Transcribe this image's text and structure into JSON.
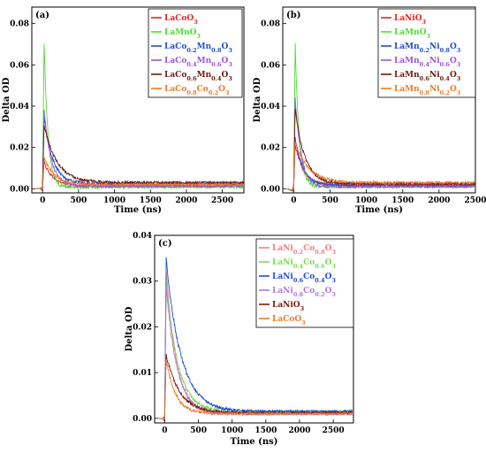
{
  "chart_data": [
    {
      "type": "line",
      "panel_label": "(a)",
      "xlabel": "Time (ns)",
      "ylabel": "Delta OD",
      "xlim": [
        -150,
        2800
      ],
      "ylim": [
        -0.002,
        0.088
      ],
      "xticks": [
        0,
        500,
        1000,
        1500,
        2000,
        2500
      ],
      "yticks": [
        0.0,
        0.02,
        0.04,
        0.06,
        0.08
      ],
      "ytick_labels": [
        "0.00",
        "0.02",
        "0.04",
        "0.06",
        "0.08"
      ],
      "legend_position": "top-right",
      "series": [
        {
          "name": "LaCoO3",
          "label_html": "LaCoO<sub>3</sub>",
          "color": "#e8211f",
          "peak": 0.013,
          "tau": 120,
          "tail": 0.0015
        },
        {
          "name": "LaMnO3",
          "label_html": "LaMnO<sub>3</sub>",
          "color": "#4fdc32",
          "peak": 0.072,
          "tau": 55,
          "tail": 0.0008
        },
        {
          "name": "LaCo0.2Mn0.8O3",
          "label_html": "LaCo<sub>0.2</sub>Mn<sub>0.8</sub>O<sub>3</sub>",
          "color": "#1f4fd1",
          "peak": 0.035,
          "tau": 120,
          "tail": 0.0025
        },
        {
          "name": "LaCo0.4Mn0.6O3",
          "label_html": "LaCo<sub>0.4</sub>Mn<sub>0.6</sub>O<sub>3</sub>",
          "color": "#9a56d8",
          "peak": 0.039,
          "tau": 95,
          "tail": 0.0012
        },
        {
          "name": "LaCo0.6Mn0.4O3",
          "label_html": "LaCo<sub>0.6</sub>Mn<sub>0.4</sub>O<sub>3</sub>",
          "color": "#6b1a12",
          "peak": 0.031,
          "tau": 180,
          "tail": 0.003
        },
        {
          "name": "LaCo0.8Co0.2O3",
          "label_html": "LaCo<sub>0.8</sub>Co<sub>0.2</sub>O<sub>3</sub>",
          "color": "#f07a2a",
          "peak": 0.015,
          "tau": 150,
          "tail": 0.002
        }
      ]
    },
    {
      "type": "line",
      "panel_label": "(b)",
      "xlabel": "Time (ns)",
      "ylabel": "Delta OD",
      "xlim": [
        -150,
        2500
      ],
      "ylim": [
        -0.002,
        0.088
      ],
      "xticks": [
        0,
        500,
        1000,
        1500,
        2000,
        2500
      ],
      "yticks": [
        0.0,
        0.02,
        0.04,
        0.06,
        0.08
      ],
      "ytick_labels": [
        "0.00",
        "0.02",
        "0.04",
        "0.06",
        "0.08"
      ],
      "legend_position": "top-right",
      "series": [
        {
          "name": "LaNiO3",
          "label_html": "LaNiO<sub>3</sub>",
          "color": "#e8211f",
          "peak": 0.022,
          "tau": 110,
          "tail": 0.002
        },
        {
          "name": "LaMnO3",
          "label_html": "LaMnO<sub>3</sub>",
          "color": "#4fdc32",
          "peak": 0.072,
          "tau": 55,
          "tail": 0.001
        },
        {
          "name": "LaMn0.2Ni0.8O3",
          "label_html": "LaMn<sub>0.2</sub>Ni<sub>0.8</sub>O<sub>3</sub>",
          "color": "#1f4fd1",
          "peak": 0.025,
          "tau": 110,
          "tail": 0.0015
        },
        {
          "name": "LaMn0.4Ni0.6O3",
          "label_html": "LaMn<sub>0.4</sub>Ni<sub>0.6</sub>O<sub>3</sub>",
          "color": "#9a56d8",
          "peak": 0.045,
          "tau": 80,
          "tail": 0.001
        },
        {
          "name": "LaMn0.6Ni0.4O3",
          "label_html": "LaMn<sub>0.6</sub>Ni<sub>0.4</sub>O<sub>3</sub>",
          "color": "#6b1a12",
          "peak": 0.039,
          "tau": 130,
          "tail": 0.0025
        },
        {
          "name": "LaMn0.8Ni0.2O3",
          "label_html": "LaMn<sub>0.8</sub>Ni<sub>0.2</sub>O<sub>3</sub>",
          "color": "#f07a2a",
          "peak": 0.023,
          "tau": 180,
          "tail": 0.003
        }
      ]
    },
    {
      "type": "line",
      "panel_label": "(c)",
      "xlabel": "Time (ns)",
      "ylabel": "Delta OD",
      "xlim": [
        -150,
        2800
      ],
      "ylim": [
        -0.001,
        0.04
      ],
      "xticks": [
        0,
        500,
        1000,
        1500,
        2000,
        2500
      ],
      "yticks": [
        0.0,
        0.01,
        0.02,
        0.03,
        0.04
      ],
      "ytick_labels": [
        "0.00",
        "0.01",
        "0.02",
        "0.03",
        "0.04"
      ],
      "legend_position": "top-right",
      "series": [
        {
          "name": "LaNi0.2Co0.8O3",
          "label_html": "LaNi<sub>0.2</sub>Co<sub>0.8</sub>O<sub>3</sub>",
          "color": "#f08080",
          "peak": 0.033,
          "tau": 150,
          "tail": 0.001
        },
        {
          "name": "LaNi0.4Co0.6O3",
          "label_html": "LaNi<sub>0.4</sub>Co<sub>0.6</sub>O<sub>3</sub>",
          "color": "#7ddc50",
          "peak": 0.031,
          "tau": 170,
          "tail": 0.0015
        },
        {
          "name": "LaNi0.6Co0.4O3",
          "label_html": "LaNi<sub>0.6</sub>Co<sub>0.4</sub>O<sub>3</sub>",
          "color": "#1f4fd1",
          "peak": 0.035,
          "tau": 220,
          "tail": 0.0015
        },
        {
          "name": "LaNi0.8Co0.2O3",
          "label_html": "LaNi<sub>0.8</sub>Co<sub>0.2</sub>O<sub>3</sub>",
          "color": "#b07ad8",
          "peak": 0.029,
          "tau": 160,
          "tail": 0.001
        },
        {
          "name": "LaNiO3",
          "label_html": "LaNiO<sub>3</sub>",
          "color": "#7a1a10",
          "peak": 0.014,
          "tau": 200,
          "tail": 0.0012
        },
        {
          "name": "LaCoO3",
          "label_html": "LaCoO<sub>3</sub>",
          "color": "#f07a2a",
          "peak": 0.013,
          "tau": 140,
          "tail": 0.001
        }
      ]
    }
  ]
}
